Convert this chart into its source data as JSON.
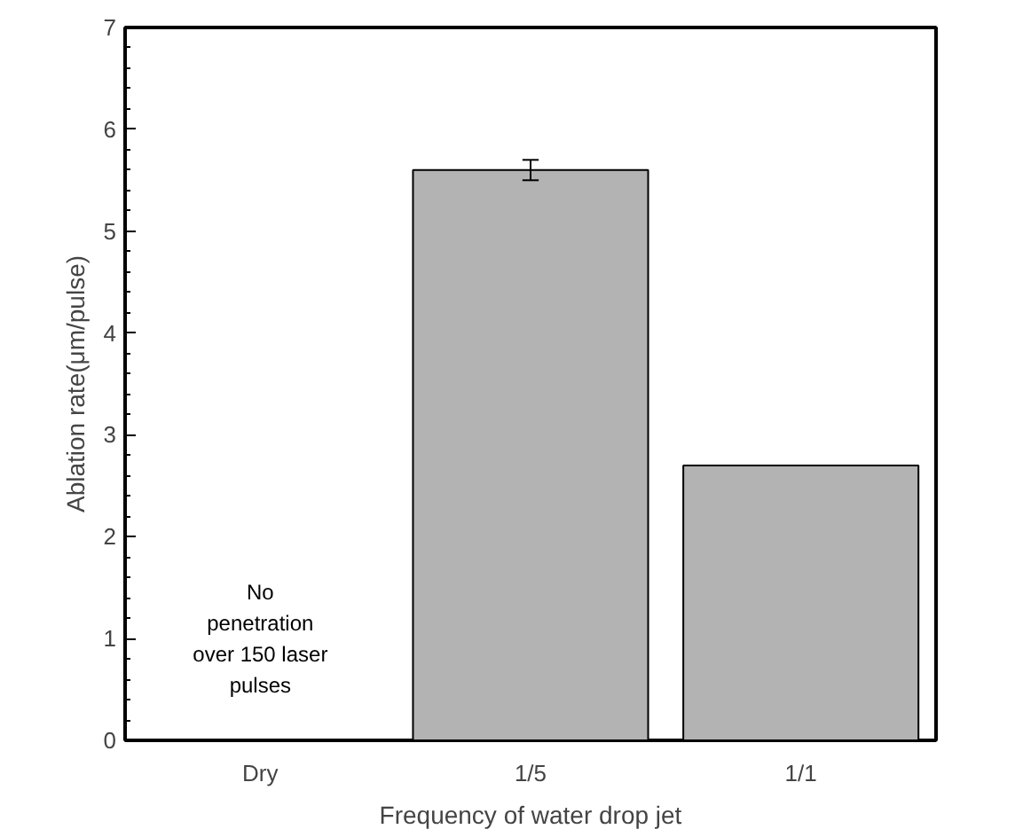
{
  "chart_data": {
    "type": "bar",
    "xlabel": "Frequency of water drop jet",
    "ylabel": "Ablation rate(μm/pulse)",
    "categories": [
      "Dry",
      "1/5",
      "1/1"
    ],
    "values": [
      null,
      5.6,
      2.7
    ],
    "errors": [
      null,
      0.1,
      null
    ],
    "color": "#b3b3b3",
    "ylim": [
      0,
      7
    ],
    "yticks": [
      0,
      1,
      2,
      3,
      4,
      5,
      6,
      7
    ],
    "grid": false,
    "annotations": [
      "No\npenetration\nover 150 laser\npulses"
    ]
  }
}
